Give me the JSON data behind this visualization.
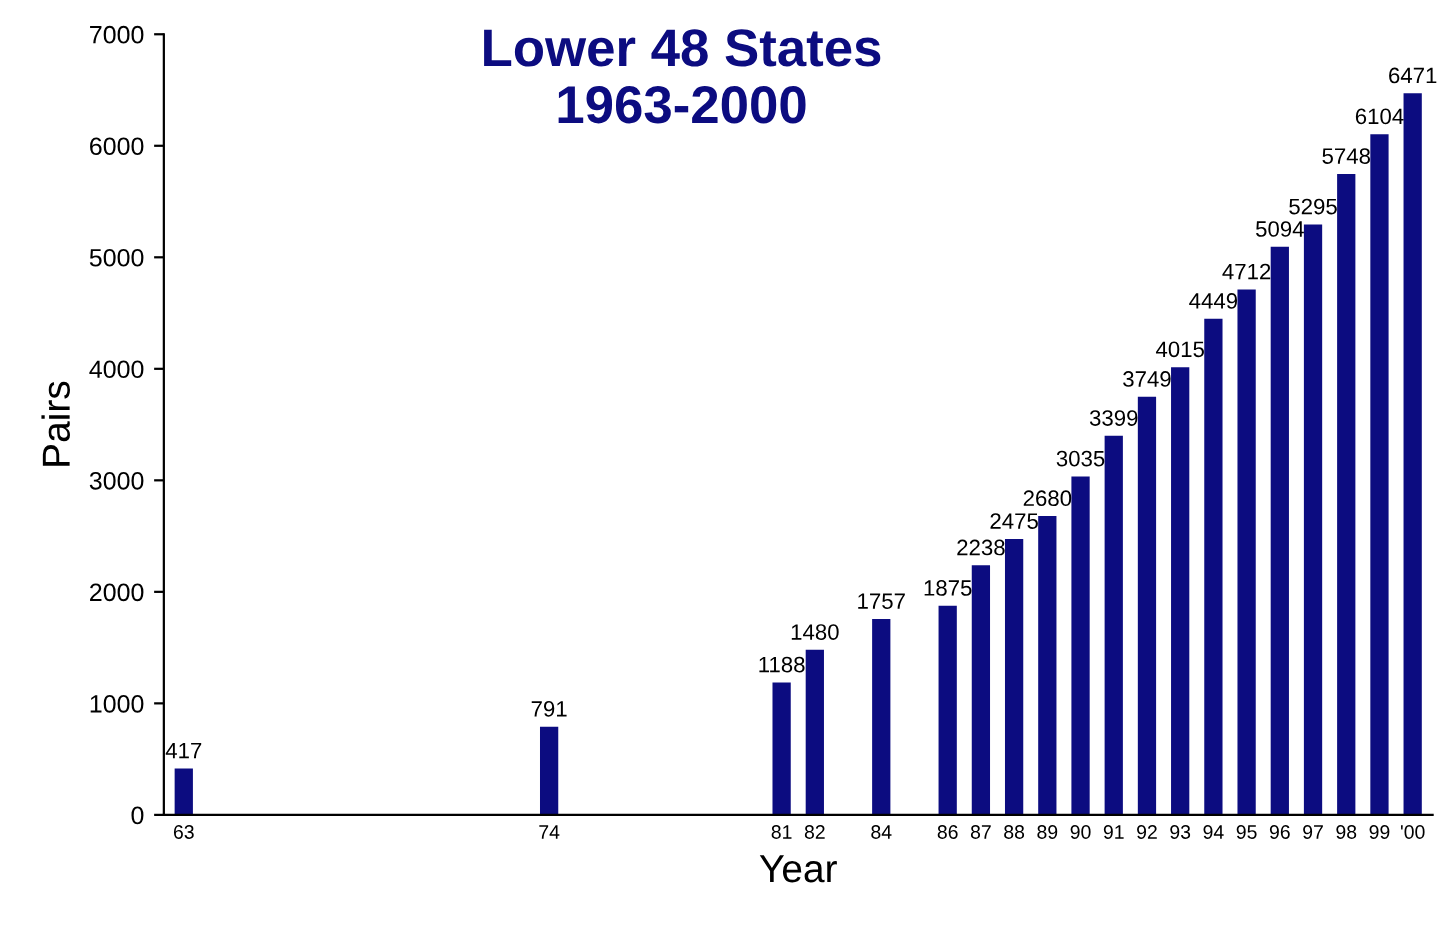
{
  "chart_data": {
    "type": "bar",
    "title": "Lower 48 States\n1963-2000",
    "xlabel": "Year",
    "ylabel": "Pairs",
    "categories": [
      "63",
      null,
      null,
      null,
      null,
      null,
      null,
      null,
      null,
      null,
      null,
      "74",
      null,
      null,
      null,
      null,
      null,
      null,
      "81",
      "82",
      null,
      "84",
      null,
      "86",
      "87",
      "88",
      "89",
      "90",
      "91",
      "92",
      "93",
      "94",
      "95",
      "96",
      "97",
      "98",
      "99",
      "'00"
    ],
    "values": [
      417,
      null,
      null,
      null,
      null,
      null,
      null,
      null,
      null,
      null,
      null,
      791,
      null,
      null,
      null,
      null,
      null,
      null,
      1188,
      1480,
      null,
      1757,
      null,
      1875,
      2238,
      2475,
      2680,
      3035,
      3399,
      3749,
      4015,
      4449,
      4712,
      5094,
      5295,
      5748,
      6104,
      6471
    ],
    "color": "#0c0c80",
    "ylim": [
      0,
      7000
    ],
    "yticks": [
      0,
      1000,
      2000,
      3000,
      4000,
      5000,
      6000,
      7000
    ],
    "grid": false,
    "data_labels": true,
    "legend": false
  }
}
